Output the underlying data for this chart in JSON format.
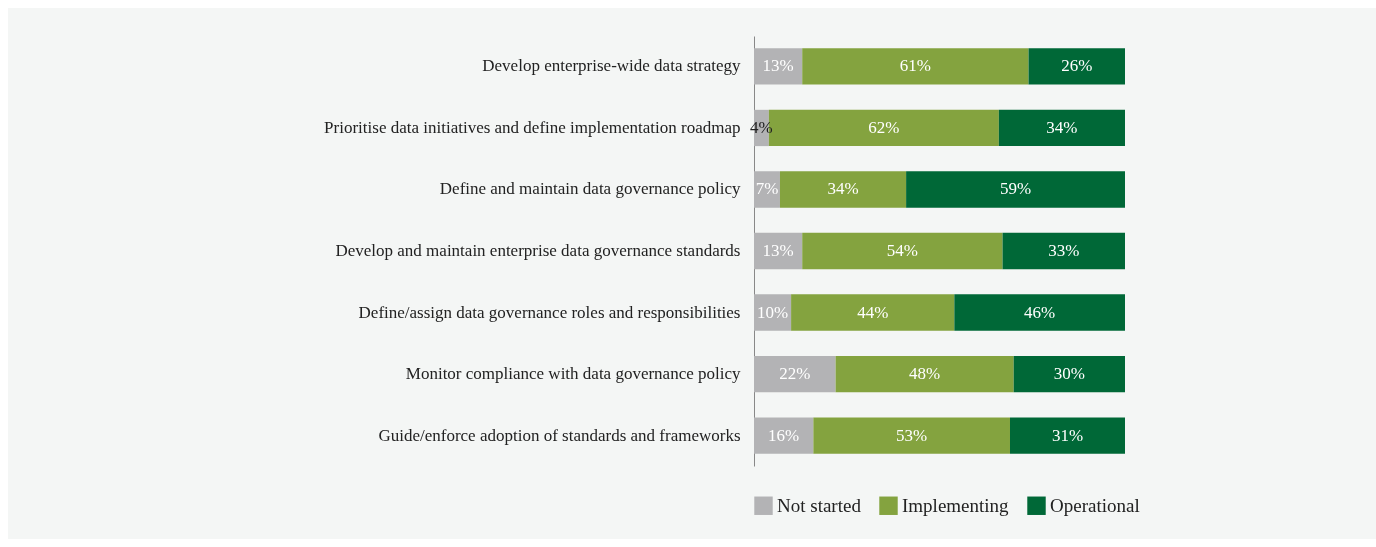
{
  "chart_data": {
    "type": "bar",
    "orientation": "horizontal",
    "stacked": true,
    "categories": [
      "Develop enterprise-wide data strategy",
      "Prioritise data initiatives and define implementation roadmap",
      "Define and maintain data governance policy",
      "Develop and maintain enterprise data governance standards",
      "Define/assign data governance roles and responsibilities",
      "Monitor compliance with data governance policy",
      "Guide/enforce adoption of standards and frameworks"
    ],
    "series": [
      {
        "name": "Not started",
        "color": "#b3b3b5",
        "values": [
          13,
          4,
          7,
          13,
          10,
          22,
          16
        ],
        "value_labels": [
          "13%",
          "4%",
          "7%",
          "13%",
          "10%",
          "22%",
          "16%"
        ]
      },
      {
        "name": "Implementing",
        "color": "#84a33f",
        "values": [
          61,
          62,
          34,
          54,
          44,
          48,
          53
        ],
        "value_labels": [
          "61%",
          "62%",
          "34%",
          "54%",
          "44%",
          "48%",
          "53%"
        ]
      },
      {
        "name": "Operational",
        "color": "#006837",
        "values": [
          26,
          34,
          59,
          33,
          46,
          30,
          31
        ],
        "value_labels": [
          "26%",
          "34%",
          "59%",
          "33%",
          "46%",
          "30%",
          "31%"
        ]
      }
    ],
    "xlim": [
      0,
      100
    ],
    "tick_labels": "y",
    "grid": false,
    "legend": "bottom"
  }
}
